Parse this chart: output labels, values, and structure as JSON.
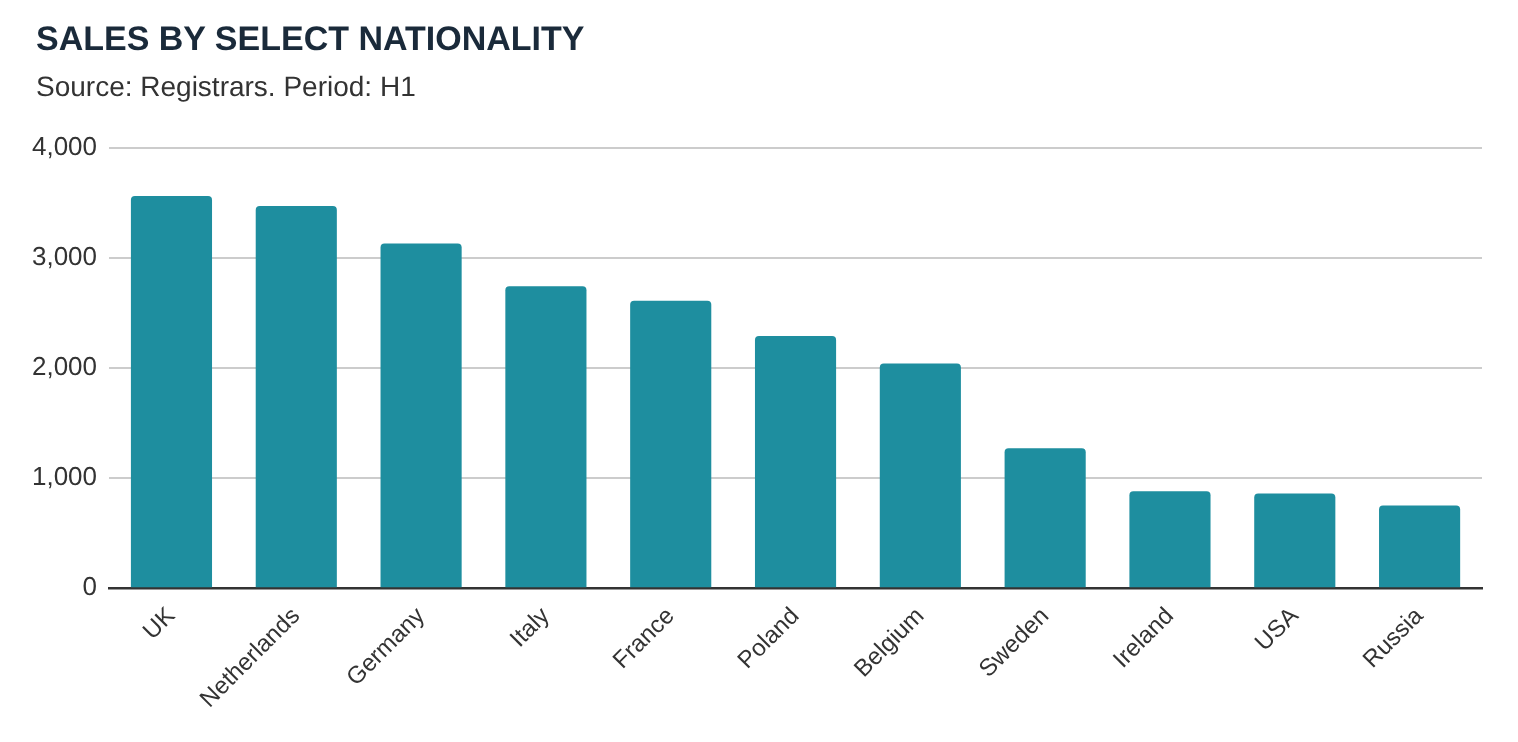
{
  "chart_data": {
    "type": "bar",
    "title": "SALES BY SELECT NATIONALITY",
    "subtitle": "Source: Registrars. Period: H1",
    "categories": [
      "UK",
      "Netherlands",
      "Germany",
      "Italy",
      "France",
      "Poland",
      "Belgium",
      "Sweden",
      "Ireland",
      "USA",
      "Russia"
    ],
    "values": [
      3560,
      3470,
      3130,
      2740,
      2610,
      2290,
      2040,
      1270,
      880,
      860,
      750
    ],
    "color": "#1e8e9f",
    "ylim": [
      0,
      4000
    ],
    "yticks": [
      {
        "value": 0,
        "label": "0"
      },
      {
        "value": 1000,
        "label": "1,000"
      },
      {
        "value": 2000,
        "label": "2,000"
      },
      {
        "value": 3000,
        "label": "3,000"
      },
      {
        "value": 4000,
        "label": "4,000"
      }
    ],
    "grid": "y"
  }
}
